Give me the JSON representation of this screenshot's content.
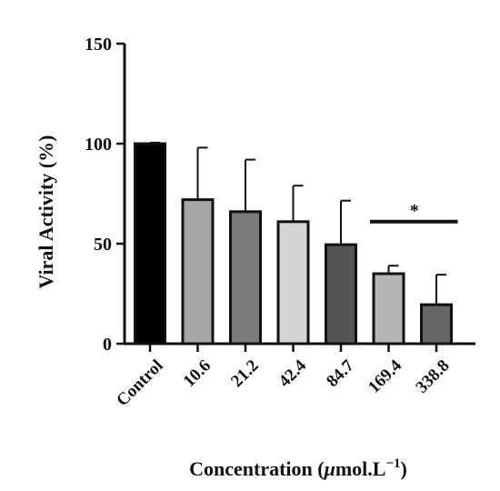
{
  "chart_data": {
    "type": "bar",
    "title": "",
    "xlabel": "Concentration (",
    "xlabel_unit_mu": "μ",
    "xlabel_unit_rest": "mol.L",
    "xlabel_sup": "−1",
    "xlabel_close": ")",
    "ylabel": "Viral Activity (%)",
    "ylim": [
      0,
      150
    ],
    "yticks": [
      "0",
      "50",
      "100",
      "150"
    ],
    "ytick_values": [
      0,
      50,
      100,
      150
    ],
    "categories": [
      "Control",
      "10.6",
      "21.2",
      "42.4",
      "84.7",
      "169.4",
      "338.8"
    ],
    "values": [
      100,
      72,
      66,
      61,
      49.5,
      35,
      19.5
    ],
    "errors": [
      0.5,
      26,
      26,
      18,
      22,
      4,
      15
    ],
    "bar_colors": [
      "#000000",
      "#a6a6a6",
      "#7a7a7a",
      "#d4d4d4",
      "#555555",
      "#b4b4b4",
      "#666666"
    ],
    "grid": false,
    "significance": {
      "label": "*",
      "from_category": "169.4",
      "to_category": "338.8",
      "y": 61
    }
  }
}
